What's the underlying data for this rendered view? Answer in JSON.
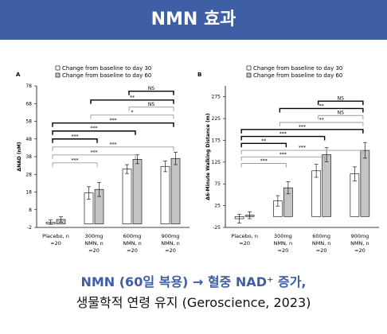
{
  "header": {
    "title": "NMN 효과"
  },
  "caption": {
    "line1": "NMN (60일 복용) → 혈중 NAD⁺ 증가,",
    "line2": "생물학적 연령 유지 (Geroscience, 2023)"
  },
  "colors": {
    "header_bg": "#3e5fa6",
    "day30_bar": "#ffffff",
    "day60_bar": "#c4c4c4",
    "bracket_dark": "#000000",
    "bracket_light": "#9a9a9a"
  },
  "chart_data": [
    {
      "type": "bar",
      "panel_label": "A",
      "ylabel": "ΔNAD (nM)",
      "yticks": [
        -2,
        8,
        18,
        28,
        38,
        48,
        58,
        68,
        78
      ],
      "ylim": [
        -2,
        78
      ],
      "legend": [
        "Change from baseline to day 30",
        "Change from baseline to day 60"
      ],
      "categories": [
        [
          "Placebo, n",
          "=20"
        ],
        [
          "300mg",
          "NMN, n",
          "=20"
        ],
        [
          "600mg",
          "NMN, n",
          "=20"
        ],
        [
          "900mg",
          "NMN, n",
          "=20"
        ]
      ],
      "series": [
        {
          "name": "Change from baseline to day 30",
          "values": [
            1,
            17.5,
            31,
            32.5
          ],
          "errors": [
            1.2,
            3.5,
            2.5,
            3
          ]
        },
        {
          "name": "Change from baseline to day 60",
          "values": [
            2.5,
            19.5,
            36.5,
            37
          ],
          "errors": [
            1.5,
            4,
            2.5,
            3.5
          ]
        }
      ],
      "annotations": [
        {
          "text": "NS",
          "a": 2,
          "b": 3,
          "level": 75,
          "style": "dark"
        },
        {
          "text": "**",
          "a": 1,
          "b": 3,
          "level": 70,
          "style": "dark"
        },
        {
          "text": "NS",
          "a": 2,
          "b": 3,
          "level": 66,
          "style": "light"
        },
        {
          "text": "*",
          "a": 1,
          "b": 3,
          "level": 61.5,
          "style": "light"
        },
        {
          "text": "***",
          "a": 0,
          "b": 3,
          "level": 57,
          "style": "dark"
        },
        {
          "text": "***",
          "a": 0,
          "b": 2,
          "level": 52.5,
          "style": "dark"
        },
        {
          "text": "***",
          "a": 0,
          "b": 1,
          "level": 48,
          "style": "dark"
        },
        {
          "text": "***",
          "a": 0,
          "b": 3,
          "level": 43.5,
          "style": "light"
        },
        {
          "text": "***",
          "a": 0,
          "b": 2,
          "level": 39,
          "style": "light"
        },
        {
          "text": "***",
          "a": 0,
          "b": 1,
          "level": 34.5,
          "style": "light"
        }
      ]
    },
    {
      "type": "bar",
      "panel_label": "B",
      "ylabel": "Δ6-Minute Walking Distance (m)",
      "yticks": [
        -25,
        25,
        75,
        125,
        175,
        225,
        275
      ],
      "ylim": [
        -25,
        300
      ],
      "legend": [
        "Change from baseline to day 30",
        "Change from baseline to day 60"
      ],
      "categories": [
        [
          "Placebo, n",
          "=20"
        ],
        [
          "300mg",
          "NMN, n",
          "=20"
        ],
        [
          "600mg",
          "NMN, n",
          "=20"
        ],
        [
          "900mg",
          "NMN, n",
          "=20"
        ]
      ],
      "series": [
        {
          "name": "Change from baseline to day 30",
          "values": [
            -5,
            36,
            105,
            98
          ],
          "errors": [
            10,
            12,
            15,
            16
          ]
        },
        {
          "name": "Change from baseline to day 60",
          "values": [
            3,
            66,
            142,
            152
          ],
          "errors": [
            8,
            14,
            16,
            18
          ]
        }
      ],
      "annotations": [
        {
          "text": "NS",
          "a": 2,
          "b": 3,
          "level": 265,
          "style": "dark"
        },
        {
          "text": "**",
          "a": 1,
          "b": 3,
          "level": 248,
          "style": "dark"
        },
        {
          "text": "NS",
          "a": 2,
          "b": 3,
          "level": 232,
          "style": "light"
        },
        {
          "text": "**",
          "a": 1,
          "b": 3,
          "level": 216,
          "style": "light"
        },
        {
          "text": "***",
          "a": 0,
          "b": 3,
          "level": 200,
          "style": "dark"
        },
        {
          "text": "***",
          "a": 0,
          "b": 2,
          "level": 184,
          "style": "dark"
        },
        {
          "text": "**",
          "a": 0,
          "b": 1,
          "level": 168,
          "style": "dark"
        },
        {
          "text": "***",
          "a": 0,
          "b": 3,
          "level": 152,
          "style": "light"
        },
        {
          "text": "***",
          "a": 0,
          "b": 2,
          "level": 137,
          "style": "light"
        },
        {
          "text": "***",
          "a": 0,
          "b": 1,
          "level": 122,
          "style": "light"
        }
      ]
    }
  ]
}
